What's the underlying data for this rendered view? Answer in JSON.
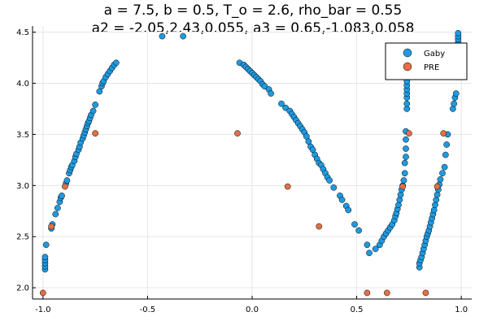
{
  "chart_data": {
    "type": "scatter",
    "title": "a = 7.5, b = 0.5, T_o = 2.6, rho_bar = 0.55",
    "subtitle": "a2 = -2.05,2.43,0.055, a3 = 0.65,-1.083,0.058",
    "xlabel": "",
    "ylabel": "",
    "xlim": [
      -1.05,
      1.05
    ],
    "ylim": [
      1.89,
      4.56
    ],
    "x_ticks": [
      {
        "value": -1.0,
        "label": "-1.0"
      },
      {
        "value": -0.5,
        "label": "-0.5"
      },
      {
        "value": 0.0,
        "label": "0.0"
      },
      {
        "value": 0.5,
        "label": "0.5"
      },
      {
        "value": 1.0,
        "label": "1.0"
      }
    ],
    "y_ticks": [
      {
        "value": 2.0,
        "label": "2.0"
      },
      {
        "value": 2.5,
        "label": "2.5"
      },
      {
        "value": 3.0,
        "label": "3.0"
      },
      {
        "value": 3.5,
        "label": "3.5"
      },
      {
        "value": 4.0,
        "label": "4.0"
      },
      {
        "value": 4.5,
        "label": "4.5"
      }
    ],
    "grid": true,
    "legend_position": "top-right",
    "series": [
      {
        "name": "Gaby",
        "color": "#1f9ae0",
        "points": [
          [
            -0.99,
            2.18
          ],
          [
            -0.99,
            2.21
          ],
          [
            -0.99,
            2.24
          ],
          [
            -0.99,
            2.27
          ],
          [
            -0.99,
            2.3
          ],
          [
            -0.985,
            2.42
          ],
          [
            -0.96,
            2.58
          ],
          [
            -0.955,
            2.62
          ],
          [
            -0.94,
            2.72
          ],
          [
            -0.93,
            2.78
          ],
          [
            -0.92,
            2.84
          ],
          [
            -0.915,
            2.88
          ],
          [
            -0.91,
            2.9
          ],
          [
            -0.89,
            3.02
          ],
          [
            -0.885,
            3.05
          ],
          [
            -0.875,
            3.12
          ],
          [
            -0.87,
            3.15
          ],
          [
            -0.865,
            3.18
          ],
          [
            -0.86,
            3.2
          ],
          [
            -0.85,
            3.24
          ],
          [
            -0.845,
            3.28
          ],
          [
            -0.84,
            3.31
          ],
          [
            -0.83,
            3.35
          ],
          [
            -0.825,
            3.38
          ],
          [
            -0.82,
            3.42
          ],
          [
            -0.81,
            3.46
          ],
          [
            -0.805,
            3.49
          ],
          [
            -0.8,
            3.52
          ],
          [
            -0.795,
            3.55
          ],
          [
            -0.79,
            3.58
          ],
          [
            -0.785,
            3.61
          ],
          [
            -0.78,
            3.63
          ],
          [
            -0.775,
            3.66
          ],
          [
            -0.77,
            3.69
          ],
          [
            -0.76,
            3.73
          ],
          [
            -0.75,
            3.79
          ],
          [
            -0.73,
            3.92
          ],
          [
            -0.72,
            3.97
          ],
          [
            -0.715,
            4.0
          ],
          [
            -0.71,
            4.02
          ],
          [
            -0.7,
            4.06
          ],
          [
            -0.69,
            4.09
          ],
          [
            -0.68,
            4.12
          ],
          [
            -0.67,
            4.15
          ],
          [
            -0.66,
            4.18
          ],
          [
            -0.65,
            4.2
          ],
          [
            -0.43,
            4.46
          ],
          [
            -0.33,
            4.46
          ],
          [
            -0.06,
            4.2
          ],
          [
            -0.04,
            4.18
          ],
          [
            -0.03,
            4.16
          ],
          [
            -0.02,
            4.14
          ],
          [
            -0.01,
            4.12
          ],
          [
            0.0,
            4.1
          ],
          [
            0.01,
            4.08
          ],
          [
            0.02,
            4.06
          ],
          [
            0.03,
            4.04
          ],
          [
            0.04,
            4.02
          ],
          [
            0.05,
            3.99
          ],
          [
            0.06,
            3.97
          ],
          [
            0.08,
            3.94
          ],
          [
            0.09,
            3.9
          ],
          [
            0.14,
            3.8
          ],
          [
            0.16,
            3.76
          ],
          [
            0.18,
            3.73
          ],
          [
            0.19,
            3.7
          ],
          [
            0.2,
            3.67
          ],
          [
            0.21,
            3.64
          ],
          [
            0.22,
            3.61
          ],
          [
            0.23,
            3.58
          ],
          [
            0.24,
            3.55
          ],
          [
            0.25,
            3.52
          ],
          [
            0.26,
            3.48
          ],
          [
            0.27,
            3.43
          ],
          [
            0.28,
            3.38
          ],
          [
            0.29,
            3.35
          ],
          [
            0.3,
            3.3
          ],
          [
            0.31,
            3.26
          ],
          [
            0.32,
            3.22
          ],
          [
            0.33,
            3.2
          ],
          [
            0.34,
            3.16
          ],
          [
            0.35,
            3.12
          ],
          [
            0.36,
            3.08
          ],
          [
            0.37,
            3.05
          ],
          [
            0.39,
            2.98
          ],
          [
            0.42,
            2.9
          ],
          [
            0.43,
            2.86
          ],
          [
            0.45,
            2.8
          ],
          [
            0.46,
            2.76
          ],
          [
            0.49,
            2.62
          ],
          [
            0.51,
            2.56
          ],
          [
            0.55,
            2.42
          ],
          [
            0.56,
            2.34
          ],
          [
            0.59,
            2.38
          ],
          [
            0.61,
            2.42
          ],
          [
            0.62,
            2.46
          ],
          [
            0.63,
            2.5
          ],
          [
            0.64,
            2.53
          ],
          [
            0.65,
            2.56
          ],
          [
            0.66,
            2.59
          ],
          [
            0.67,
            2.62
          ],
          [
            0.68,
            2.66
          ],
          [
            0.685,
            2.7
          ],
          [
            0.69,
            2.73
          ],
          [
            0.695,
            2.77
          ],
          [
            0.7,
            2.81
          ],
          [
            0.705,
            2.86
          ],
          [
            0.71,
            2.91
          ],
          [
            0.715,
            2.96
          ],
          [
            0.72,
            3.0
          ],
          [
            0.725,
            3.05
          ],
          [
            0.73,
            3.12
          ],
          [
            0.73,
            3.22
          ],
          [
            0.735,
            3.28
          ],
          [
            0.735,
            3.36
          ],
          [
            0.735,
            3.45
          ],
          [
            0.735,
            3.53
          ],
          [
            0.74,
            3.75
          ],
          [
            0.74,
            3.8
          ],
          [
            0.74,
            3.86
          ],
          [
            0.74,
            3.9
          ],
          [
            0.74,
            3.94
          ],
          [
            0.74,
            3.98
          ],
          [
            0.74,
            4.02
          ],
          [
            0.74,
            4.08
          ],
          [
            0.74,
            4.12
          ],
          [
            0.74,
            4.17
          ],
          [
            0.74,
            4.2
          ],
          [
            0.8,
            2.2
          ],
          [
            0.8,
            2.24
          ],
          [
            0.805,
            2.27
          ],
          [
            0.81,
            2.3
          ],
          [
            0.815,
            2.34
          ],
          [
            0.82,
            2.38
          ],
          [
            0.825,
            2.42
          ],
          [
            0.83,
            2.46
          ],
          [
            0.835,
            2.5
          ],
          [
            0.84,
            2.53
          ],
          [
            0.845,
            2.56
          ],
          [
            0.85,
            2.6
          ],
          [
            0.855,
            2.64
          ],
          [
            0.86,
            2.68
          ],
          [
            0.865,
            2.72
          ],
          [
            0.87,
            2.76
          ],
          [
            0.875,
            2.81
          ],
          [
            0.88,
            2.86
          ],
          [
            0.885,
            2.91
          ],
          [
            0.89,
            2.96
          ],
          [
            0.895,
            3.01
          ],
          [
            0.9,
            3.06
          ],
          [
            0.91,
            3.12
          ],
          [
            0.92,
            3.18
          ],
          [
            0.925,
            3.3
          ],
          [
            0.93,
            3.4
          ],
          [
            0.935,
            3.5
          ],
          [
            0.96,
            3.75
          ],
          [
            0.965,
            3.8
          ],
          [
            0.97,
            3.86
          ],
          [
            0.975,
            3.9
          ],
          [
            0.985,
            4.13
          ],
          [
            0.985,
            4.17
          ],
          [
            0.985,
            4.21
          ],
          [
            0.985,
            4.25
          ],
          [
            0.985,
            4.28
          ],
          [
            0.985,
            4.31
          ],
          [
            0.985,
            4.34
          ],
          [
            0.985,
            4.37
          ],
          [
            0.985,
            4.4
          ],
          [
            0.985,
            4.43
          ],
          [
            0.985,
            4.46
          ],
          [
            0.985,
            4.49
          ]
        ]
      },
      {
        "name": "PRE",
        "color": "#e26f46",
        "points": [
          [
            -1.0,
            1.95
          ],
          [
            -0.96,
            2.6
          ],
          [
            -0.895,
            2.99
          ],
          [
            -0.75,
            3.51
          ],
          [
            -0.07,
            3.51
          ],
          [
            0.17,
            2.99
          ],
          [
            0.32,
            2.6
          ],
          [
            0.55,
            1.95
          ],
          [
            0.645,
            1.95
          ],
          [
            0.72,
            2.99
          ],
          [
            0.75,
            3.51
          ],
          [
            0.83,
            1.95
          ],
          [
            0.885,
            2.99
          ],
          [
            0.915,
            3.51
          ]
        ]
      }
    ]
  }
}
